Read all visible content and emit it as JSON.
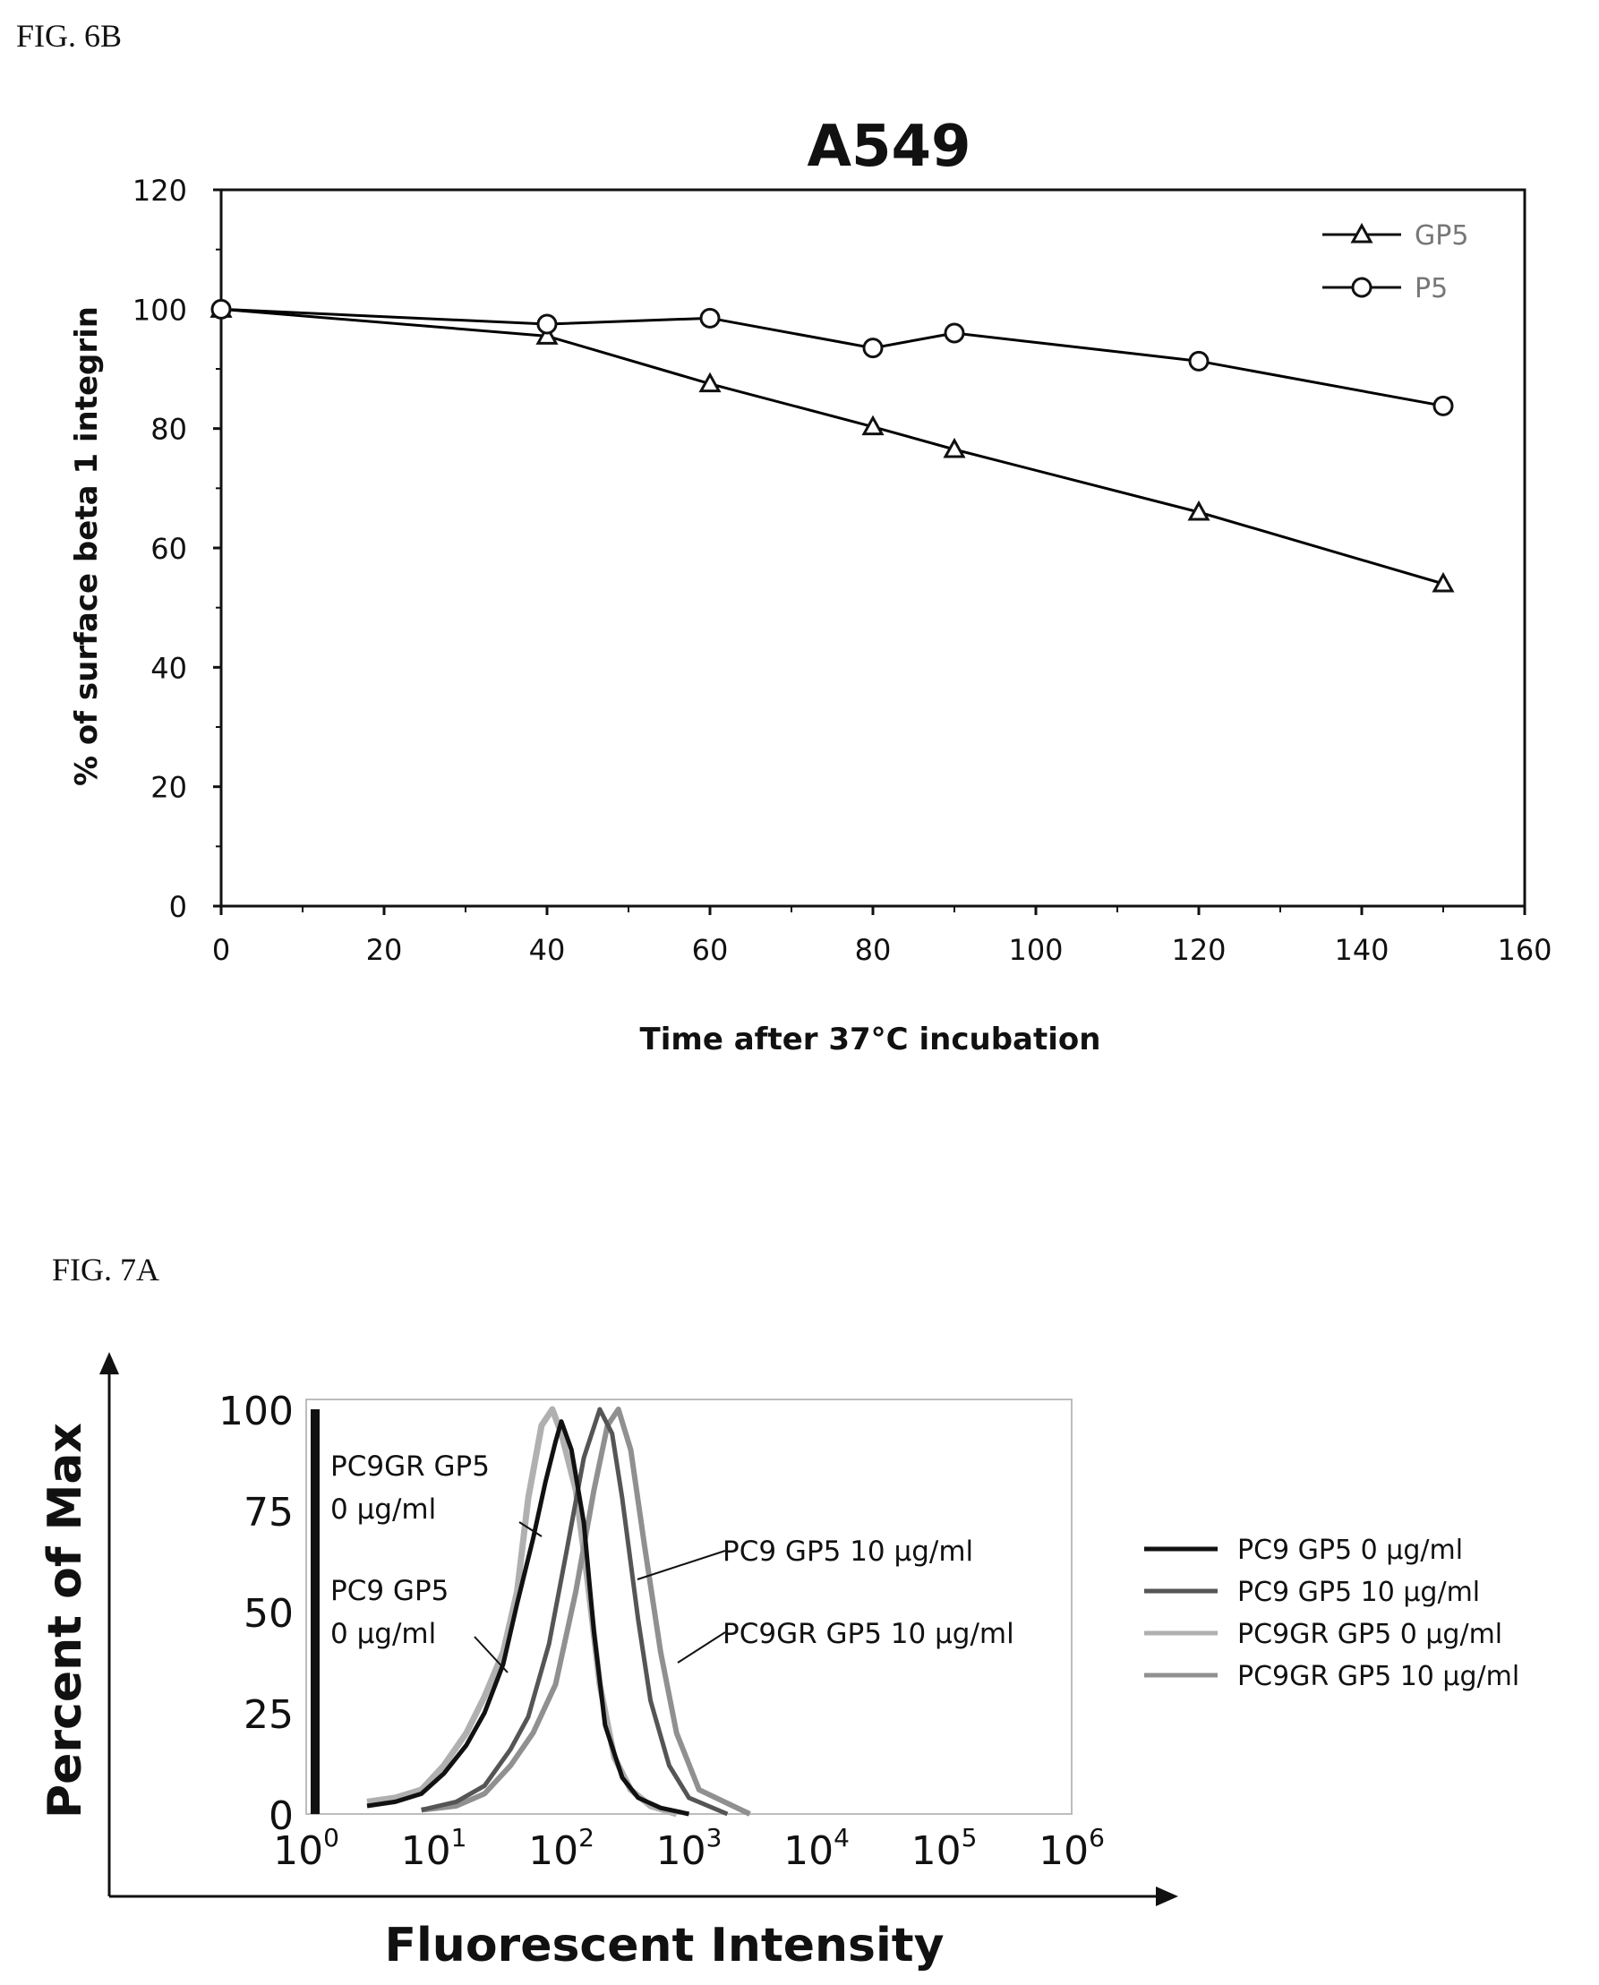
{
  "figures": {
    "fig6b_label": "FIG. 6B",
    "fig7a_label": "FIG. 7A"
  },
  "chart_data": [
    {
      "type": "line",
      "title": "A549",
      "xlabel": "Time after 37°C incubation",
      "ylabel": "% of surface beta 1 integrin",
      "xlim": [
        0,
        160
      ],
      "ylim": [
        0,
        120
      ],
      "xticks": [
        "0",
        "20",
        "40",
        "60",
        "80",
        "100",
        "120",
        "140",
        "160"
      ],
      "yticks": [
        "0",
        "20",
        "40",
        "60",
        "80",
        "100",
        "120"
      ],
      "grid": false,
      "legend_position": "top-right",
      "series": [
        {
          "name": "GP5",
          "marker": "triangle",
          "color": "#000000",
          "x": [
            0,
            40,
            60,
            80,
            90,
            120,
            150
          ],
          "y": [
            100,
            95.5,
            87.5,
            80.3,
            76.5,
            66,
            54
          ]
        },
        {
          "name": "P5",
          "marker": "circle",
          "color": "#000000",
          "x": [
            0,
            40,
            60,
            80,
            90,
            120,
            150
          ],
          "y": [
            100,
            97.5,
            98.5,
            93.5,
            96,
            91.3,
            83.8
          ]
        }
      ]
    },
    {
      "type": "area",
      "xlabel": "Fluorescent Intensity",
      "ylabel": "Percent of Max",
      "x_scale": "log",
      "xlim": [
        1,
        1000000
      ],
      "ylim": [
        0,
        100
      ],
      "xticks": [
        {
          "base": "10",
          "exp": "0"
        },
        {
          "base": "10",
          "exp": "1"
        },
        {
          "base": "10",
          "exp": "2"
        },
        {
          "base": "10",
          "exp": "3"
        },
        {
          "base": "10",
          "exp": "4"
        },
        {
          "base": "10",
          "exp": "5"
        },
        {
          "base": "10",
          "exp": "6"
        }
      ],
      "yticks": [
        "0",
        "25",
        "50",
        "75",
        "100"
      ],
      "grid": false,
      "legend_position": "right",
      "annotations": [
        {
          "lines": [
            "PC9GR GP5",
            "0 µg/ml"
          ]
        },
        {
          "lines": [
            "PC9 GP5",
            "0 µg/ml"
          ]
        },
        {
          "lines": [
            "PC9 GP5 10 µg/ml"
          ]
        },
        {
          "lines": [
            "PC9GR GP5 10 µg/ml"
          ]
        }
      ],
      "series": [
        {
          "name": "PC9 GP5 0 µg/ml",
          "color": "#111111",
          "x": [
            3,
            5,
            8,
            12,
            18,
            25,
            35,
            45,
            60,
            75,
            90,
            100,
            120,
            150,
            180,
            220,
            300,
            400,
            600,
            1000
          ],
          "y": [
            2,
            3,
            5,
            10,
            17,
            25,
            37,
            52,
            68,
            82,
            92,
            97,
            90,
            72,
            45,
            22,
            9,
            4,
            1.5,
            0
          ]
        },
        {
          "name": "PC9 GP5 10 µg/ml",
          "color": "#555555",
          "x": [
            8,
            15,
            25,
            40,
            55,
            80,
            110,
            150,
            200,
            250,
            300,
            400,
            500,
            700,
            1000,
            2000
          ],
          "y": [
            1,
            3,
            7,
            16,
            24,
            42,
            65,
            88,
            100,
            94,
            78,
            48,
            28,
            12,
            4,
            0
          ]
        },
        {
          "name": "PC9GR GP5 0 µg/ml",
          "color": "#b0b0b0",
          "x": [
            3,
            5,
            8,
            12,
            18,
            25,
            35,
            45,
            55,
            70,
            85,
            100,
            130,
            160,
            200,
            260,
            350,
            500,
            800
          ],
          "y": [
            3,
            4,
            6,
            12,
            20,
            29,
            40,
            55,
            78,
            96,
            100,
            94,
            80,
            58,
            32,
            14,
            6,
            2,
            0
          ]
        },
        {
          "name": "PC9GR GP5 10 µg/ml",
          "color": "#909090",
          "x": [
            8,
            15,
            25,
            40,
            60,
            90,
            130,
            180,
            230,
            280,
            350,
            450,
            600,
            800,
            1200,
            3000
          ],
          "y": [
            1,
            2,
            5,
            12,
            20,
            32,
            55,
            80,
            96,
            100,
            90,
            66,
            40,
            20,
            6,
            0
          ]
        }
      ]
    }
  ]
}
